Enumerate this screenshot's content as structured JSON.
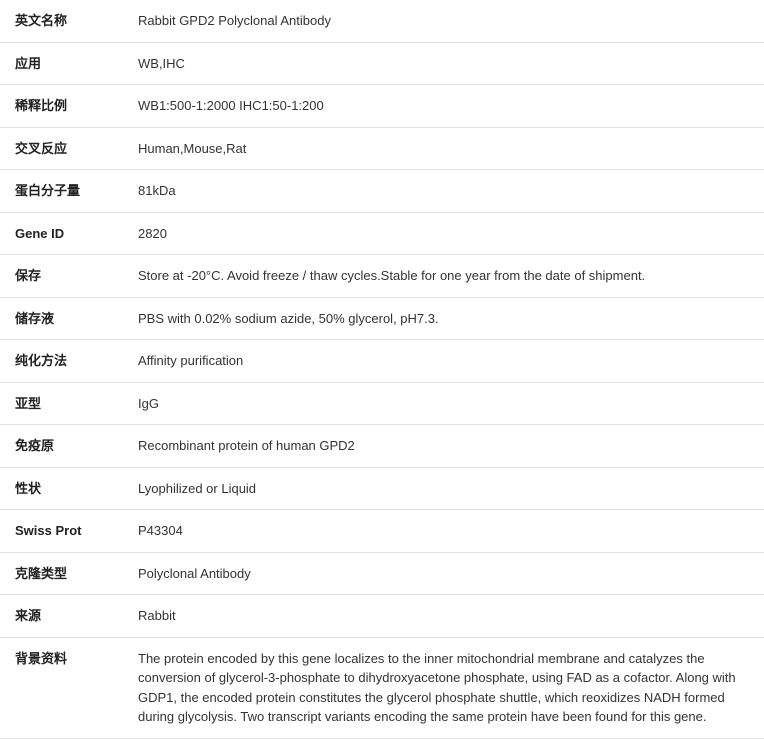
{
  "rows": [
    {
      "label": "英文名称",
      "value": "Rabbit GPD2 Polyclonal Antibody"
    },
    {
      "label": "应用",
      "value": "WB,IHC"
    },
    {
      "label": "稀释比例",
      "value": "WB1:500-1:2000 IHC1:50-1:200"
    },
    {
      "label": "交叉反应",
      "value": "Human,Mouse,Rat"
    },
    {
      "label": "蛋白分子量",
      "value": "81kDa"
    },
    {
      "label": "Gene ID",
      "value": "2820"
    },
    {
      "label": "保存",
      "value": "Store at -20°C. Avoid freeze / thaw cycles.Stable for one year from the date of shipment."
    },
    {
      "label": "储存液",
      "value": "PBS with 0.02% sodium azide, 50% glycerol, pH7.3."
    },
    {
      "label": "纯化方法",
      "value": "Affinity purification"
    },
    {
      "label": "亚型",
      "value": "IgG"
    },
    {
      "label": "免疫原",
      "value": "Recombinant protein of human GPD2"
    },
    {
      "label": "性状",
      "value": "Lyophilized or Liquid"
    },
    {
      "label": "Swiss Prot",
      "value": "P43304"
    },
    {
      "label": "克隆类型",
      "value": "Polyclonal Antibody"
    },
    {
      "label": "来源",
      "value": "Rabbit"
    },
    {
      "label": "背景资料",
      "value": "The protein encoded by this gene localizes to the inner mitochondrial membrane and catalyzes the conversion of glycerol-3-phosphate to dihydroxyacetone phosphate, using FAD as a cofactor. Along with GDP1, the encoded protein constitutes the glycerol phosphate shuttle, which reoxidizes NADH formed during glycolysis. Two transcript variants encoding the same protein have been found for this gene."
    }
  ]
}
